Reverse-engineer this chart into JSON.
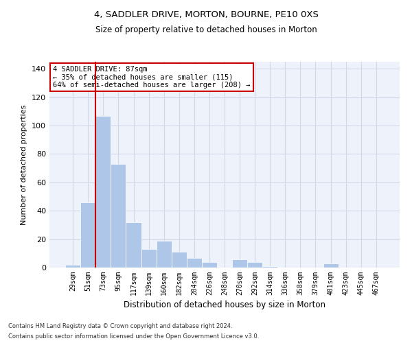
{
  "title1": "4, SADDLER DRIVE, MORTON, BOURNE, PE10 0XS",
  "title2": "Size of property relative to detached houses in Morton",
  "xlabel": "Distribution of detached houses by size in Morton",
  "ylabel": "Number of detached properties",
  "categories": [
    "29sqm",
    "51sqm",
    "73sqm",
    "95sqm",
    "117sqm",
    "139sqm",
    "160sqm",
    "182sqm",
    "204sqm",
    "226sqm",
    "248sqm",
    "270sqm",
    "292sqm",
    "314sqm",
    "336sqm",
    "358sqm",
    "379sqm",
    "401sqm",
    "423sqm",
    "445sqm",
    "467sqm"
  ],
  "values": [
    2,
    46,
    107,
    73,
    32,
    13,
    19,
    11,
    7,
    4,
    0,
    6,
    4,
    1,
    0,
    0,
    0,
    3,
    0,
    0,
    0
  ],
  "bar_color": "#aec6e8",
  "grid_color": "#d0d8e8",
  "background_color": "#eef2fa",
  "annotation_box_color": "#ffffff",
  "annotation_box_edge": "#cc0000",
  "vertical_line_color": "#cc0000",
  "annotation_line1": "4 SADDLER DRIVE: 87sqm",
  "annotation_line2": "← 35% of detached houses are smaller (115)",
  "annotation_line3": "64% of semi-detached houses are larger (208) →",
  "ylim": [
    0,
    145
  ],
  "yticks": [
    0,
    20,
    40,
    60,
    80,
    100,
    120,
    140
  ],
  "footer1": "Contains HM Land Registry data © Crown copyright and database right 2024.",
  "footer2": "Contains public sector information licensed under the Open Government Licence v3.0."
}
